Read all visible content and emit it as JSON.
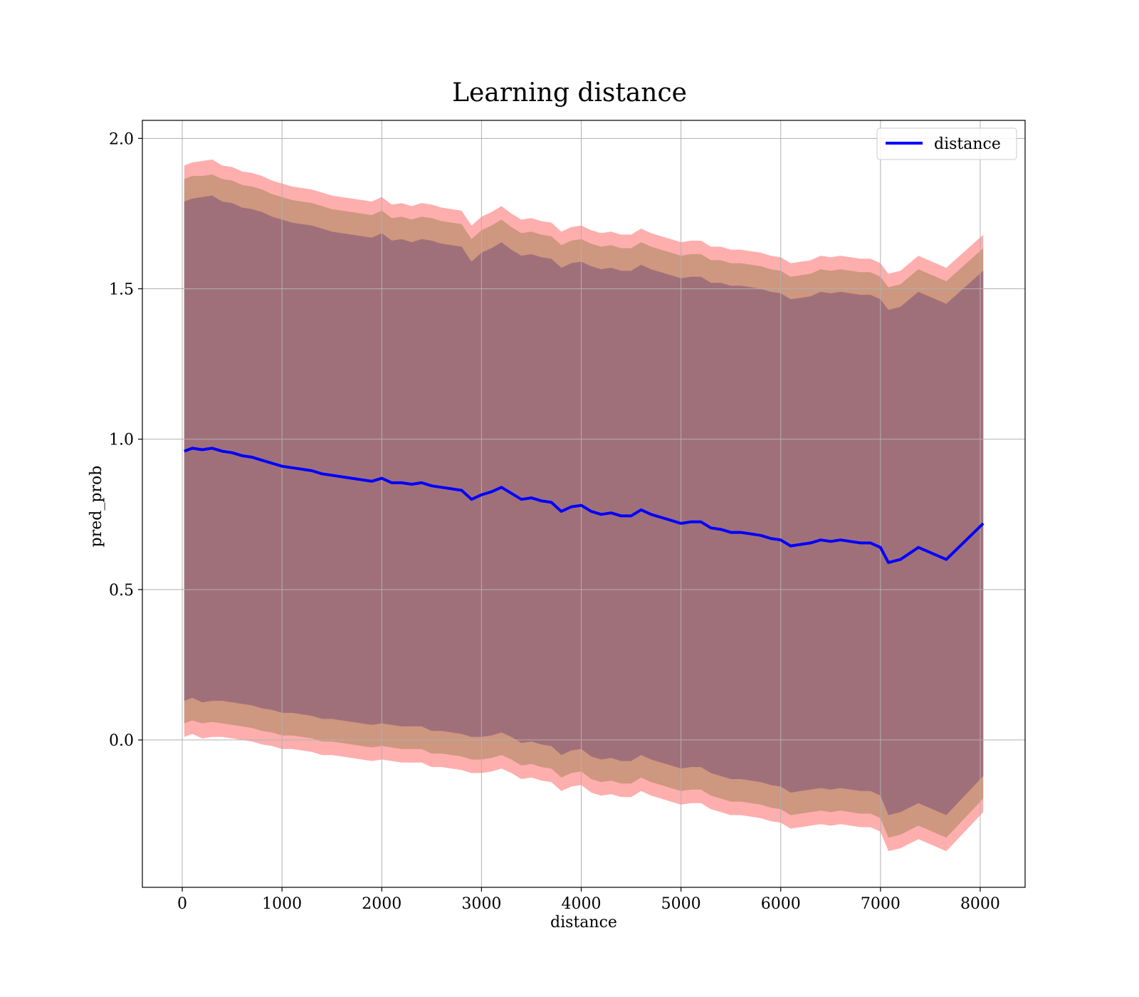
{
  "chart_data": {
    "type": "line",
    "title": "Learning distance",
    "xlabel": "distance",
    "ylabel": "pred_prob",
    "xlim": [
      -400,
      8450
    ],
    "ylim": [
      -0.49,
      2.06
    ],
    "xticks": [
      0,
      1000,
      2000,
      3000,
      4000,
      5000,
      6000,
      7000,
      8000
    ],
    "xtick_labels": [
      "0",
      "1000",
      "2000",
      "3000",
      "4000",
      "5000",
      "6000",
      "7000",
      "8000"
    ],
    "yticks": [
      0.0,
      0.5,
      1.0,
      1.5,
      2.0
    ],
    "ytick_labels": [
      "0.0",
      "0.5",
      "1.0",
      "1.5",
      "2.0"
    ],
    "grid": true,
    "legend": {
      "position": "top-right",
      "entries": [
        "distance"
      ]
    },
    "colors": {
      "line": "#0000ff",
      "band_outer": "#ff9a9a",
      "band_middle": "#c9957a",
      "band_inner": "#a0707a",
      "grid": "#b0b0b0"
    },
    "series": [
      {
        "name": "distance",
        "x": [
          20,
          100,
          200,
          300,
          400,
          500,
          600,
          700,
          800,
          900,
          1000,
          1100,
          1200,
          1300,
          1400,
          1500,
          1600,
          1700,
          1800,
          1900,
          2000,
          2100,
          2200,
          2300,
          2400,
          2500,
          2600,
          2700,
          2800,
          2900,
          3000,
          3100,
          3200,
          3300,
          3400,
          3500,
          3600,
          3700,
          3800,
          3900,
          4000,
          4100,
          4200,
          4300,
          4400,
          4500,
          4600,
          4700,
          4800,
          4900,
          5000,
          5100,
          5200,
          5300,
          5400,
          5500,
          5600,
          5700,
          5800,
          5900,
          6000,
          6100,
          6200,
          6300,
          6400,
          6500,
          6600,
          6700,
          6800,
          6900,
          7000,
          7080,
          7200,
          7380,
          7660,
          8030
        ],
        "y": [
          0.96,
          0.97,
          0.965,
          0.97,
          0.96,
          0.955,
          0.945,
          0.94,
          0.93,
          0.92,
          0.91,
          0.905,
          0.9,
          0.895,
          0.885,
          0.88,
          0.875,
          0.87,
          0.865,
          0.86,
          0.87,
          0.855,
          0.855,
          0.85,
          0.855,
          0.845,
          0.84,
          0.835,
          0.83,
          0.8,
          0.815,
          0.825,
          0.84,
          0.82,
          0.8,
          0.805,
          0.795,
          0.79,
          0.76,
          0.775,
          0.78,
          0.76,
          0.75,
          0.755,
          0.745,
          0.745,
          0.765,
          0.75,
          0.74,
          0.73,
          0.72,
          0.725,
          0.725,
          0.705,
          0.7,
          0.69,
          0.69,
          0.685,
          0.68,
          0.67,
          0.665,
          0.645,
          0.65,
          0.655,
          0.665,
          0.66,
          0.665,
          0.66,
          0.655,
          0.655,
          0.64,
          0.59,
          0.6,
          0.64,
          0.6,
          0.72
        ],
        "band_outer": [
          0.95,
          0.95,
          0.96,
          0.96,
          0.95,
          0.95,
          0.945,
          0.945,
          0.945,
          0.94,
          0.94,
          0.935,
          0.935,
          0.935,
          0.935,
          0.93,
          0.93,
          0.93,
          0.93,
          0.93,
          0.935,
          0.925,
          0.93,
          0.925,
          0.93,
          0.935,
          0.93,
          0.93,
          0.93,
          0.91,
          0.925,
          0.93,
          0.935,
          0.93,
          0.93,
          0.93,
          0.93,
          0.93,
          0.93,
          0.93,
          0.93,
          0.935,
          0.935,
          0.935,
          0.935,
          0.935,
          0.935,
          0.935,
          0.935,
          0.935,
          0.935,
          0.935,
          0.935,
          0.935,
          0.94,
          0.94,
          0.94,
          0.94,
          0.94,
          0.94,
          0.94,
          0.94,
          0.94,
          0.94,
          0.945,
          0.945,
          0.945,
          0.945,
          0.945,
          0.945,
          0.945,
          0.96,
          0.96,
          0.97,
          0.97,
          0.96
        ],
        "band_middle": [
          0.905,
          0.905,
          0.91,
          0.91,
          0.905,
          0.905,
          0.9,
          0.9,
          0.9,
          0.895,
          0.895,
          0.89,
          0.89,
          0.89,
          0.89,
          0.885,
          0.885,
          0.885,
          0.885,
          0.885,
          0.89,
          0.88,
          0.885,
          0.88,
          0.885,
          0.89,
          0.885,
          0.885,
          0.885,
          0.865,
          0.88,
          0.885,
          0.89,
          0.885,
          0.885,
          0.885,
          0.885,
          0.885,
          0.885,
          0.885,
          0.885,
          0.89,
          0.89,
          0.89,
          0.89,
          0.89,
          0.89,
          0.89,
          0.89,
          0.89,
          0.89,
          0.89,
          0.89,
          0.89,
          0.895,
          0.895,
          0.895,
          0.895,
          0.895,
          0.895,
          0.895,
          0.895,
          0.895,
          0.895,
          0.9,
          0.9,
          0.9,
          0.9,
          0.9,
          0.9,
          0.9,
          0.915,
          0.915,
          0.925,
          0.925,
          0.915
        ],
        "band_inner": [
          0.83,
          0.83,
          0.84,
          0.84,
          0.83,
          0.83,
          0.825,
          0.825,
          0.825,
          0.82,
          0.82,
          0.815,
          0.815,
          0.815,
          0.815,
          0.81,
          0.81,
          0.81,
          0.81,
          0.81,
          0.815,
          0.805,
          0.81,
          0.805,
          0.81,
          0.815,
          0.81,
          0.81,
          0.81,
          0.79,
          0.805,
          0.81,
          0.815,
          0.81,
          0.81,
          0.81,
          0.81,
          0.81,
          0.81,
          0.81,
          0.81,
          0.815,
          0.815,
          0.815,
          0.815,
          0.815,
          0.815,
          0.815,
          0.815,
          0.815,
          0.815,
          0.815,
          0.815,
          0.815,
          0.82,
          0.82,
          0.82,
          0.82,
          0.82,
          0.82,
          0.82,
          0.82,
          0.82,
          0.82,
          0.825,
          0.825,
          0.825,
          0.825,
          0.825,
          0.825,
          0.825,
          0.84,
          0.84,
          0.85,
          0.85,
          0.84
        ]
      }
    ]
  }
}
